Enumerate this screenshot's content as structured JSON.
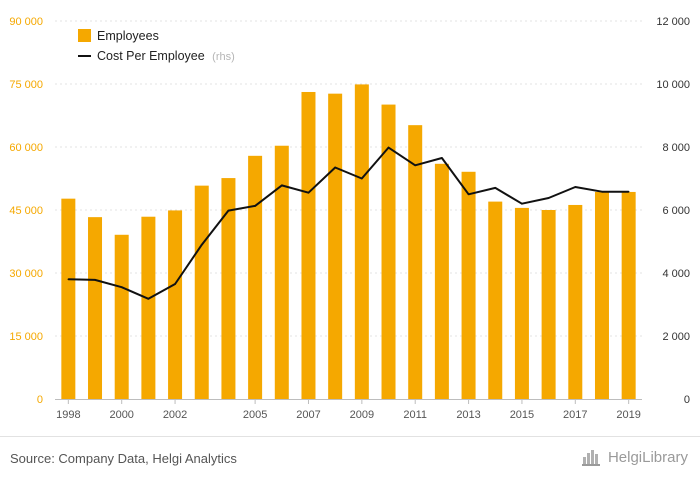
{
  "chart_data": {
    "type": "bar+line",
    "categories": [
      "1998",
      "1999",
      "2000",
      "2001",
      "2002",
      "2003",
      "2004",
      "2005",
      "2006",
      "2007",
      "2008",
      "2009",
      "2010",
      "2011",
      "2012",
      "2013",
      "2014",
      "2015",
      "2016",
      "2017",
      "2018",
      "2019"
    ],
    "x_tick_labels": [
      "1998",
      "2000",
      "2002",
      "2005",
      "2007",
      "2009",
      "2011",
      "2013",
      "2015",
      "2017",
      "2019"
    ],
    "series": [
      {
        "name": "Employees",
        "type": "bar",
        "axis": "left",
        "color": "#f5a800",
        "values": [
          47700,
          43300,
          39100,
          43400,
          44900,
          50800,
          52600,
          57900,
          60300,
          73100,
          72700,
          74900,
          70100,
          65200,
          56000,
          54100,
          47000,
          45500,
          45000,
          46200,
          49300,
          49300
        ]
      },
      {
        "name": "Cost Per Employee",
        "name_suffix": "(rhs)",
        "type": "line",
        "axis": "right",
        "color": "#111111",
        "values": [
          3800,
          3780,
          3550,
          3180,
          3650,
          4900,
          5980,
          6130,
          6780,
          6550,
          7350,
          7000,
          7980,
          7420,
          7650,
          6500,
          6700,
          6200,
          6380,
          6730,
          6580,
          6580
        ]
      }
    ],
    "y_left": {
      "min": 0,
      "max": 90000,
      "ticks": [
        "0",
        "15 000",
        "30 000",
        "45 000",
        "60 000",
        "75 000",
        "90 000"
      ],
      "color": "#f5a800"
    },
    "y_right": {
      "min": 0,
      "max": 12000,
      "ticks": [
        "0",
        "2 000",
        "4 000",
        "6 000",
        "8 000",
        "10 000",
        "12 000"
      ]
    },
    "legend_position": "top-left",
    "grid": true
  },
  "footer": {
    "source": "Source: Company Data, Helgi Analytics",
    "brand": "HelgiLibrary",
    "brand_icon": "building-logo-icon"
  }
}
